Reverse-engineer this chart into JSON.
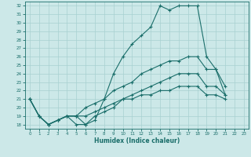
{
  "xlabel": "Humidex (Indice chaleur)",
  "background_color": "#cce8e8",
  "grid_color": "#a8d0d0",
  "line_color": "#1a6e6a",
  "xlim": [
    -0.5,
    23.5
  ],
  "ylim": [
    17.5,
    32.5
  ],
  "xticks": [
    0,
    1,
    2,
    3,
    4,
    5,
    6,
    7,
    8,
    9,
    10,
    11,
    12,
    13,
    14,
    15,
    16,
    17,
    18,
    19,
    20,
    21,
    22,
    23
  ],
  "yticks": [
    18,
    19,
    20,
    21,
    22,
    23,
    24,
    25,
    26,
    27,
    28,
    29,
    30,
    31,
    32
  ],
  "lines": [
    {
      "x": [
        0,
        1,
        2,
        3,
        4,
        5,
        6,
        7,
        8,
        9,
        10,
        11,
        12,
        13,
        14,
        15,
        16,
        17,
        18,
        19,
        20,
        21
      ],
      "y": [
        21,
        19,
        18,
        18.5,
        19,
        18,
        18,
        18.5,
        21,
        24,
        26,
        27.5,
        28.5,
        29.5,
        32,
        31.5,
        32,
        32,
        32,
        26,
        24.5,
        22.5
      ]
    },
    {
      "x": [
        0,
        1,
        2,
        3,
        4,
        5,
        6,
        7,
        8,
        9,
        10,
        11,
        12,
        13,
        14,
        15,
        16,
        17,
        18,
        19,
        20,
        21
      ],
      "y": [
        21,
        19,
        18,
        18.5,
        19,
        19,
        20,
        20.5,
        21,
        22,
        22.5,
        23,
        24,
        24.5,
        25,
        25.5,
        25.5,
        26,
        26,
        24.5,
        24.5,
        21.5
      ]
    },
    {
      "x": [
        0,
        1,
        2,
        3,
        4,
        5,
        6,
        7,
        8,
        9,
        10,
        11,
        12,
        13,
        14,
        15,
        16,
        17,
        18,
        19,
        20,
        21
      ],
      "y": [
        21,
        19,
        18,
        18.5,
        19,
        19,
        18,
        19,
        19.5,
        20,
        21,
        21.5,
        22,
        22.5,
        23,
        23.5,
        24,
        24,
        24,
        22.5,
        22.5,
        21.5
      ]
    },
    {
      "x": [
        0,
        1,
        2,
        3,
        4,
        5,
        6,
        7,
        8,
        9,
        10,
        11,
        12,
        13,
        14,
        15,
        16,
        17,
        18,
        19,
        20,
        21
      ],
      "y": [
        21,
        19,
        18,
        18.5,
        19,
        19,
        19,
        19.5,
        20,
        20.5,
        21,
        21,
        21.5,
        21.5,
        22,
        22,
        22.5,
        22.5,
        22.5,
        21.5,
        21.5,
        21
      ]
    }
  ]
}
